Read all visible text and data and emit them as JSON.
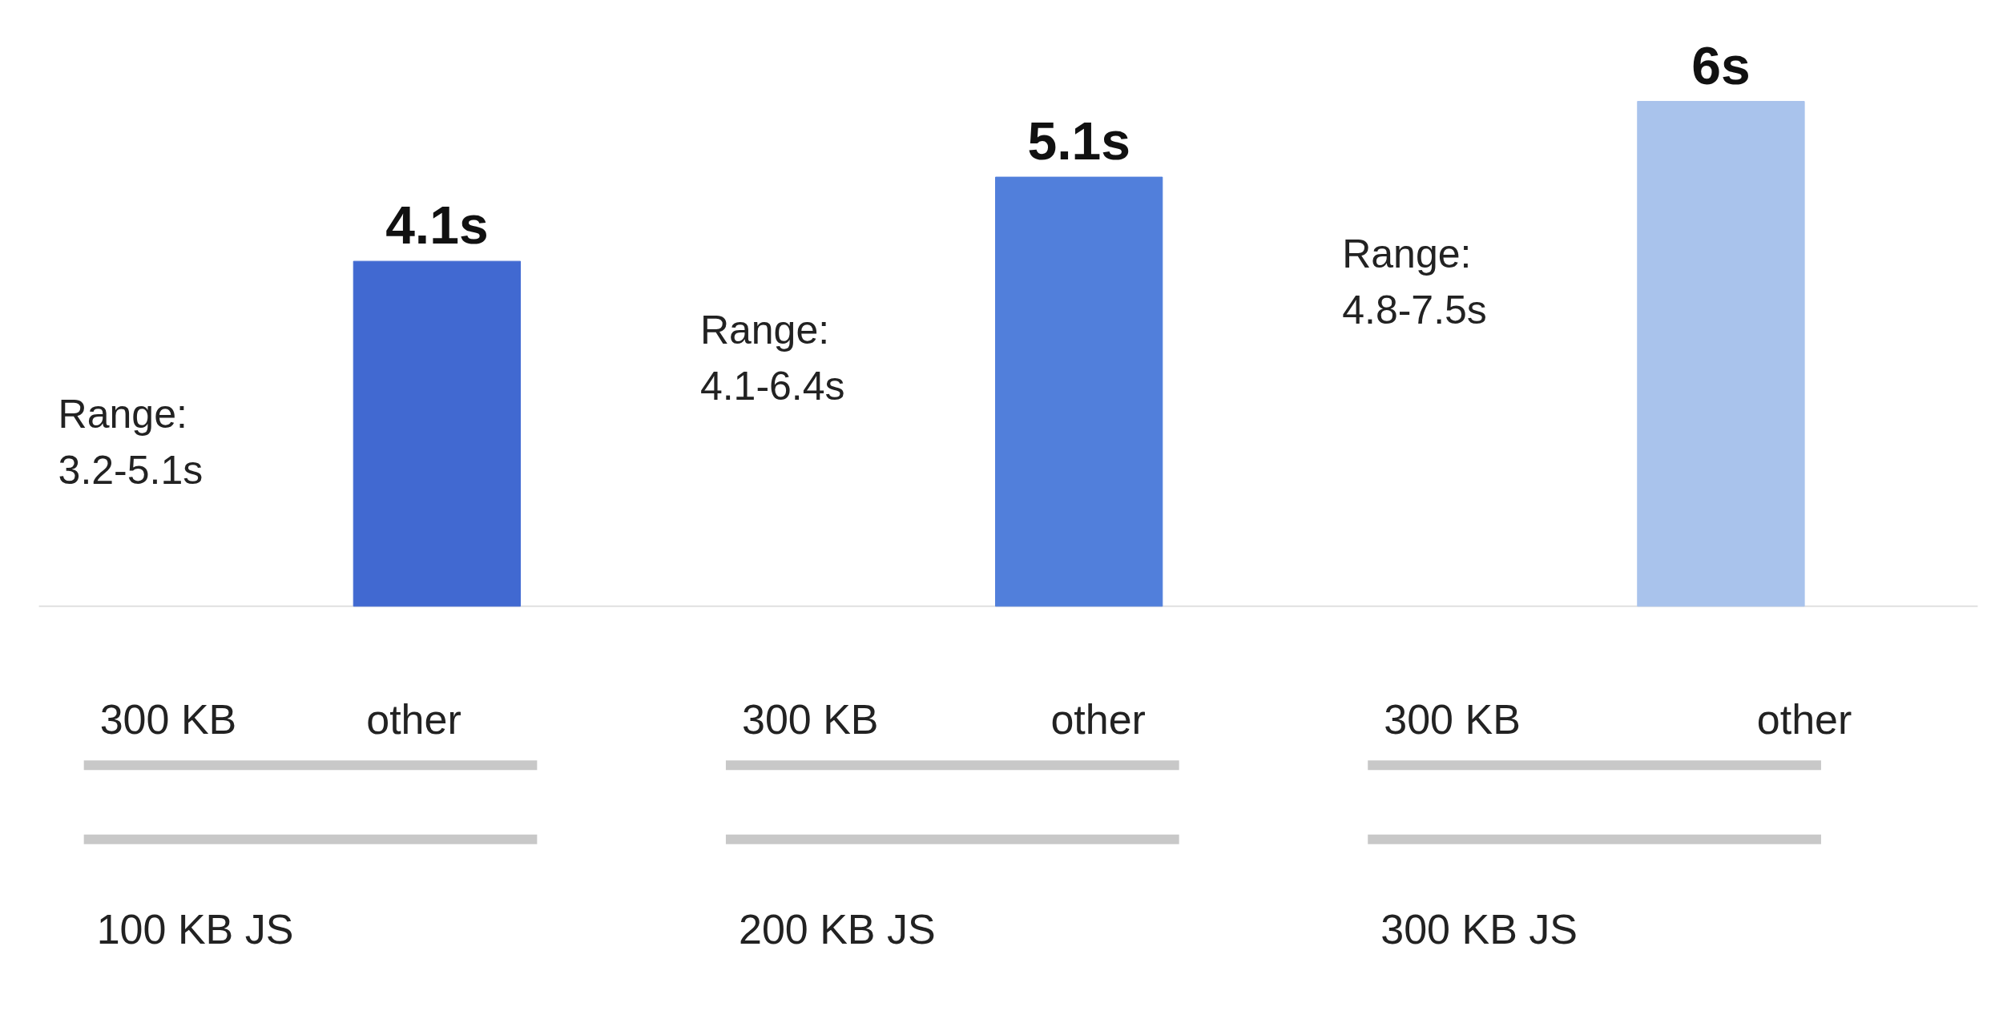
{
  "chart_data": {
    "type": "bar",
    "categories": [
      null,
      null,
      null
    ],
    "values": [
      4.1,
      5.1,
      6
    ],
    "colors": [
      "#4169d1",
      "#517fdb",
      "#a9c3ec"
    ],
    "value_labels": [
      "4.1s",
      "5.1s",
      "6s"
    ],
    "annotations": [
      "Range:\n3.2-5.1s",
      "300 KB",
      "other",
      "100 KB JS",
      "Range:\n4.1-6.4s",
      "300 KB",
      "other",
      "200 KB JS",
      "Range:\n4.8-7.5s",
      "300 KB",
      "other",
      "300 KB JS"
    ],
    "grid": false
  }
}
